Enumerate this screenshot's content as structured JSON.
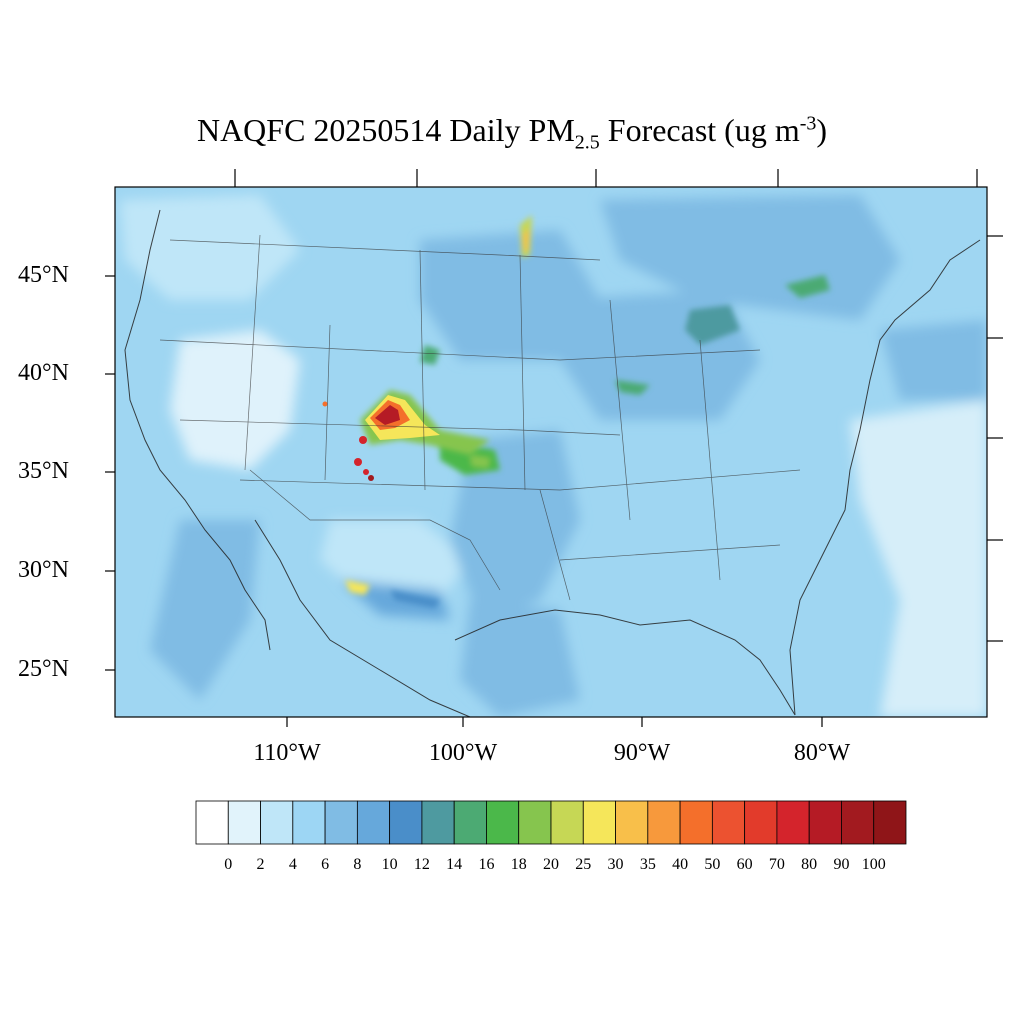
{
  "title": {
    "prefix": "NAQFC 20250514 Daily PM",
    "subscript": "2.5",
    "middle": " Forecast (ug m",
    "superscript": "-3",
    "suffix": ")"
  },
  "map": {
    "projection": "Lambert conformal, CONUS",
    "lat_ticks": [
      "45°N",
      "40°N",
      "35°N",
      "30°N",
      "25°N"
    ],
    "lon_ticks": [
      "110°W",
      "100°W",
      "90°W",
      "80°W"
    ],
    "background_fill": "#9fd6f2"
  },
  "colorbar": {
    "labels": [
      "0",
      "2",
      "4",
      "6",
      "8",
      "10",
      "12",
      "14",
      "16",
      "18",
      "20",
      "25",
      "30",
      "35",
      "40",
      "50",
      "60",
      "70",
      "80",
      "90",
      "100"
    ],
    "colors": [
      "#ffffff",
      "#e1f3fb",
      "#bfe6f8",
      "#9dd6f4",
      "#80bce4",
      "#66a8db",
      "#4a8ec9",
      "#4e9aa0",
      "#4caa73",
      "#4bb84a",
      "#86c54e",
      "#c6d755",
      "#f5e65a",
      "#f8bf4a",
      "#f7993c",
      "#f46f2b",
      "#ec5230",
      "#e23b2b",
      "#d4242c",
      "#b51b25",
      "#a21a1f",
      "#8f1518"
    ]
  },
  "hotspots": [
    {
      "name": "colorado-front-range-smoke",
      "level": "100"
    },
    {
      "name": "western-kansas-plume",
      "level": "16"
    },
    {
      "name": "minnesota-north-dakota-border",
      "level": "30"
    },
    {
      "name": "michigan-lake-region",
      "level": "14"
    },
    {
      "name": "new-mexico-texas-border",
      "level": "30"
    }
  ]
}
